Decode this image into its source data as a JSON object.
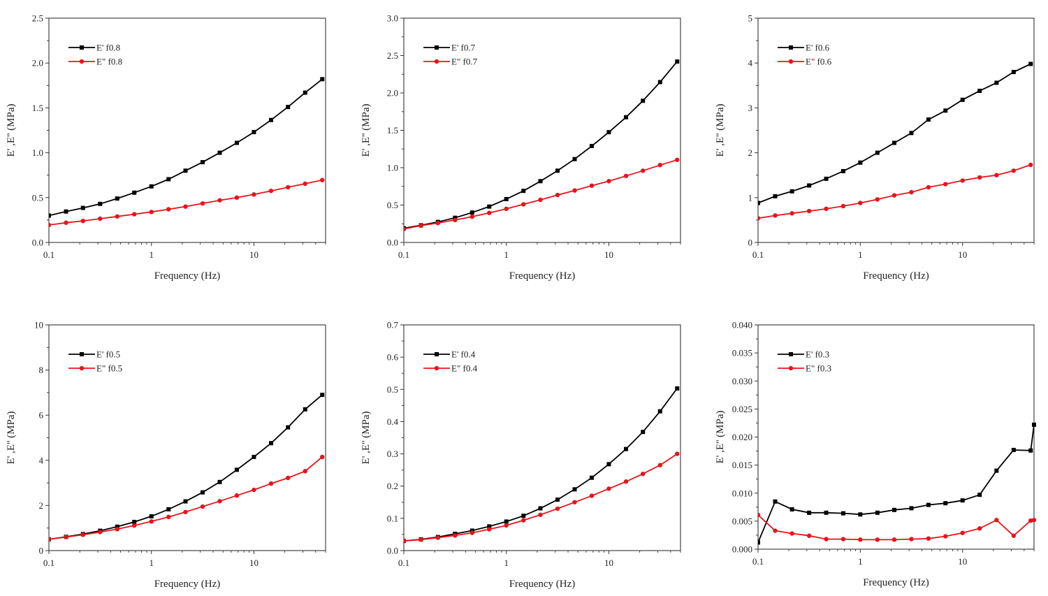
{
  "colors": {
    "storage": "#000000",
    "loss": "#e8141b",
    "axis": "#333333"
  },
  "chart_data": [
    {
      "type": "line",
      "xscale": "log",
      "xlim": [
        0.1,
        50
      ],
      "ylim": [
        0,
        2.5
      ],
      "xticks": [
        0.1,
        1,
        10
      ],
      "xtick_labels": [
        "0.1",
        "1",
        "10"
      ],
      "yticks": [
        0,
        0.5,
        1.0,
        1.5,
        2.0,
        2.5
      ],
      "ytick_labels": [
        "0.0",
        "0.5",
        "1.0",
        "1.5",
        "2.0",
        "2.5"
      ],
      "xlabel": "Frequency (Hz)",
      "ylabel": "E' ,E'' (MPa)",
      "legend_position": "top-left",
      "x": [
        0.1,
        0.147,
        0.215,
        0.316,
        0.464,
        0.681,
        1.0,
        1.47,
        2.15,
        3.16,
        4.64,
        6.81,
        10.0,
        14.7,
        21.5,
        31.6,
        46.4
      ],
      "series": [
        {
          "name": "E' f0.8",
          "kind": "storage",
          "values": [
            0.3,
            0.345,
            0.385,
            0.43,
            0.49,
            0.555,
            0.625,
            0.705,
            0.8,
            0.895,
            1.0,
            1.11,
            1.23,
            1.365,
            1.51,
            1.67,
            1.82
          ]
        },
        {
          "name": "E\" f0.8",
          "kind": "loss",
          "values": [
            0.195,
            0.22,
            0.24,
            0.265,
            0.29,
            0.315,
            0.34,
            0.37,
            0.4,
            0.435,
            0.47,
            0.5,
            0.535,
            0.575,
            0.615,
            0.655,
            0.695
          ]
        }
      ]
    },
    {
      "type": "line",
      "xscale": "log",
      "xlim": [
        0.1,
        50
      ],
      "ylim": [
        0,
        3.0
      ],
      "xticks": [
        0.1,
        1,
        10
      ],
      "xtick_labels": [
        "0.1",
        "1",
        "10"
      ],
      "yticks": [
        0,
        0.5,
        1.0,
        1.5,
        2.0,
        2.5,
        3.0
      ],
      "ytick_labels": [
        "0.0",
        "0.5",
        "1.0",
        "1.5",
        "2.0",
        "2.5",
        "3.0"
      ],
      "xlabel": "Frequency (Hz)",
      "ylabel": "E' ,E'' (MPa)",
      "legend_position": "top-left",
      "x": [
        0.1,
        0.147,
        0.215,
        0.316,
        0.464,
        0.681,
        1.0,
        1.47,
        2.15,
        3.16,
        4.64,
        6.81,
        10.0,
        14.7,
        21.5,
        31.6,
        46.4
      ],
      "series": [
        {
          "name": "E' f0.7",
          "kind": "storage",
          "values": [
            0.19,
            0.23,
            0.275,
            0.33,
            0.4,
            0.48,
            0.58,
            0.69,
            0.82,
            0.96,
            1.115,
            1.29,
            1.475,
            1.675,
            1.895,
            2.145,
            2.42
          ]
        },
        {
          "name": "E\" f0.7",
          "kind": "loss",
          "values": [
            0.18,
            0.225,
            0.26,
            0.3,
            0.345,
            0.395,
            0.45,
            0.51,
            0.57,
            0.635,
            0.695,
            0.76,
            0.82,
            0.89,
            0.96,
            1.035,
            1.105
          ]
        }
      ]
    },
    {
      "type": "line",
      "xscale": "log",
      "xlim": [
        0.1,
        50
      ],
      "ylim": [
        0,
        5
      ],
      "xticks": [
        0.1,
        1,
        10
      ],
      "xtick_labels": [
        "0.1",
        "1",
        "10"
      ],
      "yticks": [
        0,
        1,
        2,
        3,
        4,
        5
      ],
      "ytick_labels": [
        "0",
        "1",
        "2",
        "3",
        "4",
        "5"
      ],
      "xlabel": "Frequency (Hz)",
      "ylabel": "E' ,E'' (MPa)",
      "legend_position": "top-left",
      "x": [
        0.1,
        0.147,
        0.215,
        0.316,
        0.464,
        0.681,
        1.0,
        1.47,
        2.15,
        3.16,
        4.64,
        6.81,
        10.0,
        14.7,
        21.5,
        31.6,
        46.4
      ],
      "series": [
        {
          "name": "E' f0.6",
          "kind": "storage",
          "values": [
            0.88,
            1.03,
            1.14,
            1.27,
            1.42,
            1.59,
            1.78,
            2.0,
            2.22,
            2.44,
            2.74,
            2.94,
            3.18,
            3.38,
            3.56,
            3.8,
            3.98
          ]
        },
        {
          "name": "E\" f0.6",
          "kind": "loss",
          "values": [
            0.54,
            0.6,
            0.65,
            0.7,
            0.75,
            0.81,
            0.88,
            0.96,
            1.05,
            1.12,
            1.23,
            1.3,
            1.38,
            1.45,
            1.5,
            1.6,
            1.73
          ]
        }
      ]
    },
    {
      "type": "line",
      "xscale": "log",
      "xlim": [
        0.1,
        50
      ],
      "ylim": [
        0,
        10
      ],
      "xticks": [
        0.1,
        1,
        10
      ],
      "xtick_labels": [
        "0.1",
        "1",
        "10"
      ],
      "yticks": [
        0,
        2,
        4,
        6,
        8,
        10
      ],
      "ytick_labels": [
        "0",
        "2",
        "4",
        "6",
        "8",
        "10"
      ],
      "xlabel": "Frequency (Hz)",
      "ylabel": "E' ,E'' (MPa)",
      "legend_position": "top-left",
      "x": [
        0.1,
        0.147,
        0.215,
        0.316,
        0.464,
        0.681,
        1.0,
        1.47,
        2.15,
        3.16,
        4.64,
        6.81,
        10.0,
        14.7,
        21.5,
        31.6,
        46.4
      ],
      "series": [
        {
          "name": "E' f0.5",
          "kind": "storage",
          "values": [
            0.5,
            0.61,
            0.73,
            0.88,
            1.06,
            1.27,
            1.52,
            1.83,
            2.18,
            2.58,
            3.04,
            3.58,
            4.15,
            4.76,
            5.46,
            6.26,
            6.9
          ]
        },
        {
          "name": "E\" f0.5",
          "kind": "loss",
          "values": [
            0.5,
            0.6,
            0.7,
            0.82,
            0.95,
            1.11,
            1.29,
            1.49,
            1.71,
            1.95,
            2.19,
            2.44,
            2.69,
            2.97,
            3.22,
            3.52,
            4.15
          ]
        }
      ]
    },
    {
      "type": "line",
      "xscale": "log",
      "xlim": [
        0.1,
        50
      ],
      "ylim": [
        0,
        0.7
      ],
      "xticks": [
        0.1,
        1,
        10
      ],
      "xtick_labels": [
        "0.1",
        "1",
        "10"
      ],
      "yticks": [
        0,
        0.1,
        0.2,
        0.3,
        0.4,
        0.5,
        0.6,
        0.7
      ],
      "ytick_labels": [
        "0.0",
        "0.1",
        "0.2",
        "0.3",
        "0.4",
        "0.5",
        "0.6",
        "0.7"
      ],
      "xlabel": "Frequency (Hz)",
      "ylabel": "E' ,E'' (MPa)",
      "legend_position": "top-left",
      "x": [
        0.1,
        0.147,
        0.215,
        0.316,
        0.464,
        0.681,
        1.0,
        1.47,
        2.15,
        3.16,
        4.64,
        6.81,
        10.0,
        14.7,
        21.5,
        31.6,
        46.4
      ],
      "series": [
        {
          "name": "E' f0.4",
          "kind": "storage",
          "values": [
            0.03,
            0.035,
            0.042,
            0.052,
            0.062,
            0.075,
            0.09,
            0.108,
            0.131,
            0.158,
            0.19,
            0.226,
            0.268,
            0.315,
            0.368,
            0.432,
            0.503
          ]
        },
        {
          "name": "E\" f0.4",
          "kind": "loss",
          "values": [
            0.03,
            0.034,
            0.04,
            0.047,
            0.055,
            0.066,
            0.078,
            0.094,
            0.111,
            0.13,
            0.15,
            0.17,
            0.192,
            0.214,
            0.238,
            0.265,
            0.3
          ]
        }
      ]
    },
    {
      "type": "line",
      "xscale": "log",
      "xlim": [
        0.1,
        50
      ],
      "ylim": [
        0,
        0.04
      ],
      "xticks": [
        0.1,
        1,
        10
      ],
      "xtick_labels": [
        "0.1",
        "1",
        "10"
      ],
      "yticks": [
        0,
        0.005,
        0.01,
        0.015,
        0.02,
        0.025,
        0.03,
        0.035,
        0.04
      ],
      "ytick_labels": [
        "0.000",
        "0.005",
        "0.010",
        "0.015",
        "0.020",
        "0.025",
        "0.030",
        "0.035",
        "0.040"
      ],
      "xlabel": "Frequency (Hz)",
      "ylabel": "E' ,E'' (MPa)",
      "legend_position": "top-left",
      "x": [
        0.1,
        0.147,
        0.215,
        0.316,
        0.464,
        0.681,
        1.0,
        1.47,
        2.15,
        3.16,
        4.64,
        6.81,
        10.0,
        14.7,
        21.5,
        31.6,
        46.4,
        50
      ],
      "series": [
        {
          "name": "E' f0.3",
          "kind": "storage",
          "values": [
            0.0012,
            0.0085,
            0.0071,
            0.0065,
            0.0065,
            0.0064,
            0.0062,
            0.0065,
            0.007,
            0.0073,
            0.0079,
            0.0082,
            0.0087,
            0.0097,
            0.014,
            0.0177,
            0.0176,
            0.0222
          ]
        },
        {
          "name": "E\" f0.3",
          "kind": "loss",
          "values": [
            0.0061,
            0.0033,
            0.0028,
            0.0024,
            0.0018,
            0.0018,
            0.0017,
            0.0017,
            0.0017,
            0.0018,
            0.0019,
            0.0023,
            0.0029,
            0.0037,
            0.0052,
            0.0024,
            0.0051,
            0.0052
          ]
        }
      ]
    }
  ]
}
